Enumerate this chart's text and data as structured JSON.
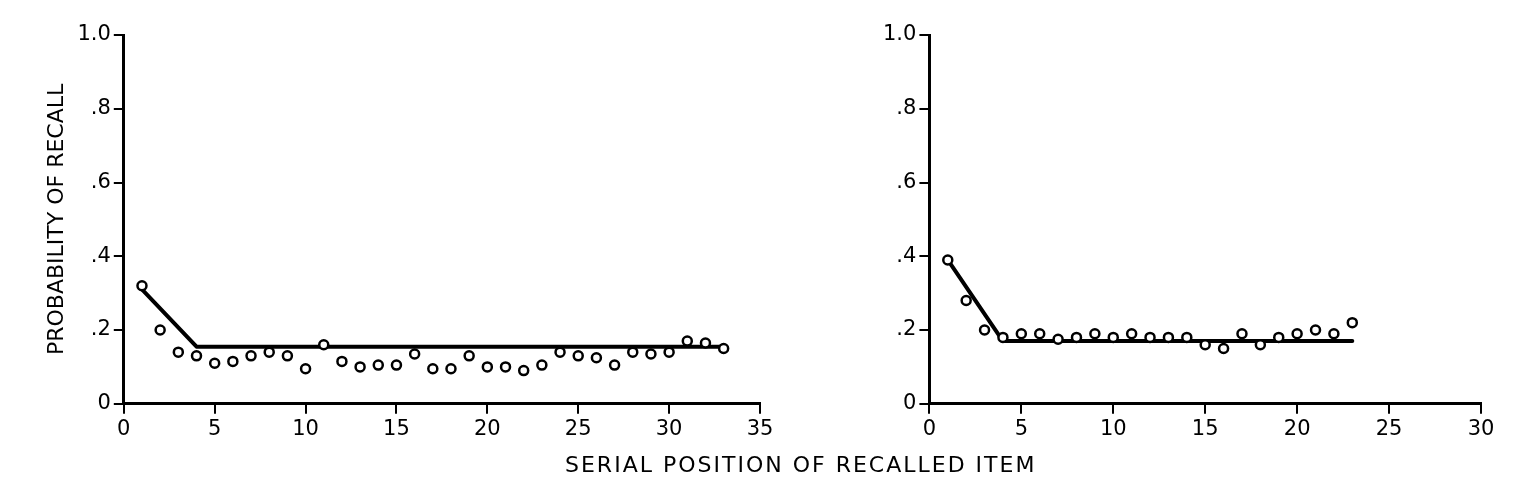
{
  "chart_data": [
    {
      "type": "scatter",
      "ylabel": "PROBABILITY OF RECALL",
      "xlabel": "SERIAL POSITION OF RECALLED ITEM",
      "marker": "circle",
      "grid": false,
      "legend": false,
      "xlim": [
        0,
        35
      ],
      "xticks": [
        0,
        5,
        10,
        15,
        20,
        25,
        30,
        35
      ],
      "ylim": [
        0,
        1.0
      ],
      "yticks": [
        0,
        {
          "value": 0.2,
          "label": ".2"
        },
        {
          "value": 0.4,
          "label": ".4"
        },
        {
          "value": 0.6,
          "label": ".6"
        },
        {
          "value": 0.8,
          "label": ".8"
        },
        {
          "value": 1.0,
          "label": "1.0"
        }
      ],
      "series": [
        {
          "type": "scatter",
          "color": "#000000",
          "x": [
            1,
            2,
            3,
            4,
            5,
            6,
            7,
            8,
            9,
            10,
            11,
            12,
            13,
            14,
            15,
            16,
            17,
            18,
            19,
            20,
            21,
            22,
            23,
            24,
            25,
            26,
            27,
            28,
            29,
            30,
            31,
            32,
            33
          ],
          "values": [
            0.32,
            0.2,
            0.14,
            0.13,
            0.11,
            0.115,
            0.13,
            0.14,
            0.13,
            0.095,
            0.16,
            0.115,
            0.1,
            0.105,
            0.105,
            0.135,
            0.095,
            0.095,
            0.13,
            0.1,
            0.1,
            0.09,
            0.105,
            0.14,
            0.13,
            0.125,
            0.105,
            0.14,
            0.135,
            0.14,
            0.17,
            0.165,
            0.15
          ]
        },
        {
          "type": "line",
          "color": "#000000",
          "marker": "none",
          "line_style": "solid",
          "x": [
            1,
            4,
            33
          ],
          "values": [
            0.31,
            0.155,
            0.155
          ]
        }
      ]
    },
    {
      "type": "scatter",
      "marker": "circle",
      "grid": false,
      "legend": false,
      "xlim": [
        0,
        30
      ],
      "xticks": [
        0,
        5,
        10,
        15,
        20,
        25,
        30
      ],
      "ylim": [
        0,
        1.0
      ],
      "yticks": [
        0,
        {
          "value": 0.2,
          "label": ".2"
        },
        {
          "value": 0.4,
          "label": ".4"
        },
        {
          "value": 0.6,
          "label": ".6"
        },
        {
          "value": 0.8,
          "label": ".8"
        },
        {
          "value": 1.0,
          "label": "1.0"
        }
      ],
      "series": [
        {
          "type": "scatter",
          "color": "#000000",
          "x": [
            1,
            2,
            3,
            4,
            5,
            6,
            7,
            8,
            9,
            10,
            11,
            12,
            13,
            14,
            15,
            16,
            17,
            18,
            19,
            20,
            21,
            22,
            23
          ],
          "values": [
            0.39,
            0.28,
            0.2,
            0.18,
            0.19,
            0.19,
            0.175,
            0.18,
            0.19,
            0.18,
            0.19,
            0.18,
            0.18,
            0.18,
            0.16,
            0.15,
            0.19,
            0.16,
            0.18,
            0.19,
            0.2,
            0.19,
            0.22
          ]
        },
        {
          "type": "line",
          "color": "#000000",
          "marker": "none",
          "line_style": "solid",
          "x": [
            1,
            4,
            23
          ],
          "values": [
            0.39,
            0.17,
            0.17
          ]
        }
      ]
    }
  ]
}
